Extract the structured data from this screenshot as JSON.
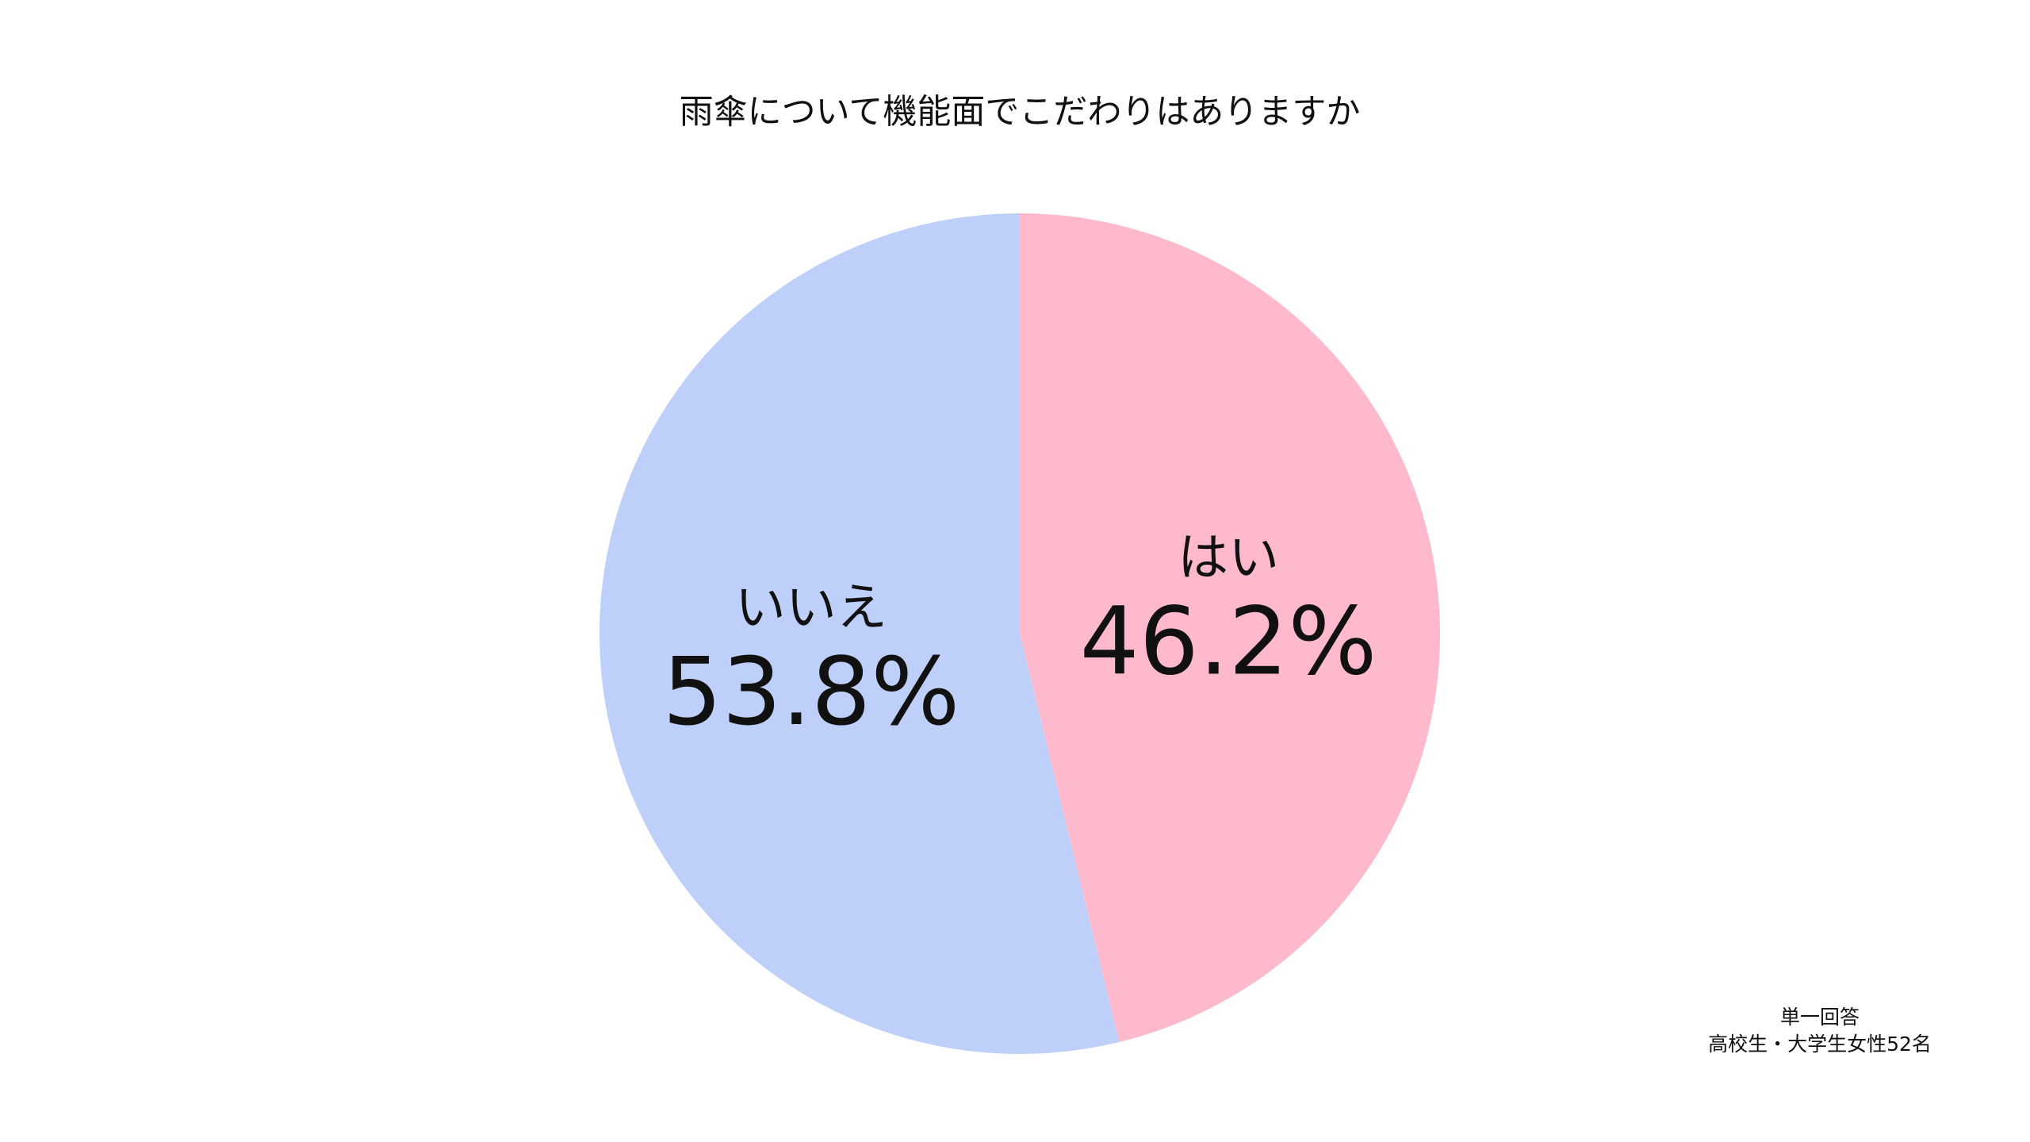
{
  "chart_data": {
    "type": "pie",
    "title": "雨傘について機能面でこだわりはありますか",
    "categories": [
      "はい",
      "いいえ"
    ],
    "values": [
      46.2,
      53.8
    ],
    "value_labels": [
      "46.2%",
      "53.8%"
    ],
    "colors": [
      "#ffb9cc",
      "#bed0fa"
    ],
    "notes": [
      "単一回答",
      "高校生・大学生女性52名"
    ]
  }
}
